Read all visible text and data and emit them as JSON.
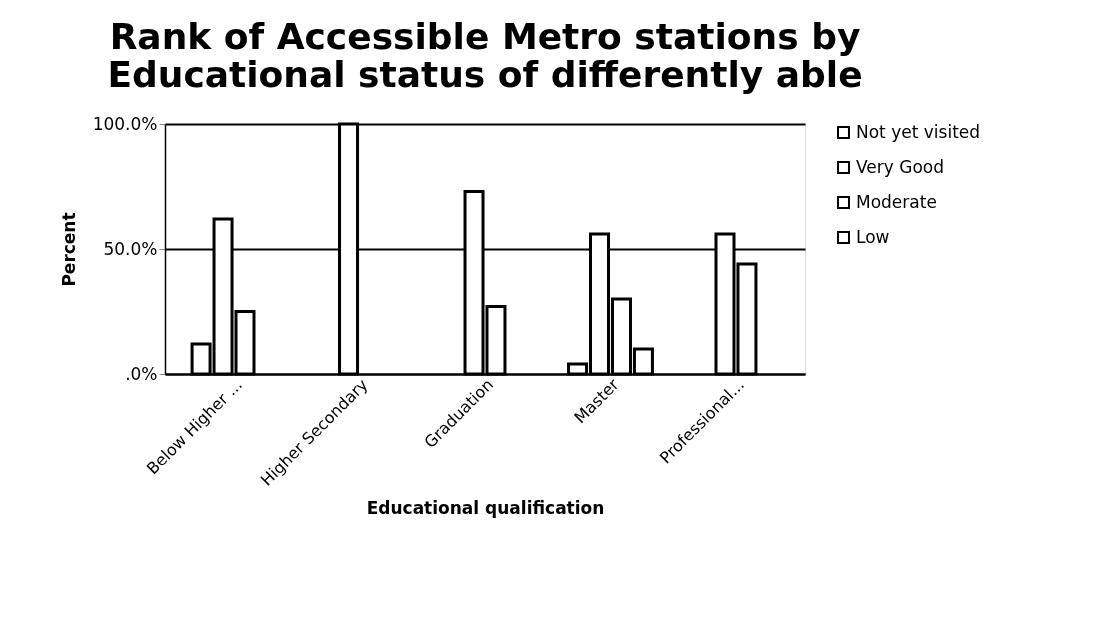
{
  "chart_data": {
    "type": "bar",
    "title": "Rank of Accessible Metro stations by Educational status of differently able",
    "xlabel": "Educational qualification",
    "ylabel": "Percent",
    "categories": [
      "Below Higher ...",
      "Higher Secondary",
      "Graduation",
      "Master",
      "Professional..."
    ],
    "series": [
      {
        "name": "Not yet visited",
        "color": "#ffffff",
        "values": [
          12,
          0,
          0,
          4,
          0
        ]
      },
      {
        "name": "Very Good",
        "color": "#ffffff",
        "values": [
          62,
          100,
          73,
          56,
          56
        ]
      },
      {
        "name": "Moderate",
        "color": "#ffffff",
        "values": [
          25,
          0,
          27,
          30,
          44
        ]
      },
      {
        "name": "Low",
        "color": "#ffffff",
        "values": [
          0,
          0,
          0,
          10,
          0
        ]
      }
    ],
    "ylim": [
      0,
      100
    ],
    "yticks": [
      {
        "value": 0,
        "label": ".0%"
      },
      {
        "value": 50,
        "label": "50.0%"
      },
      {
        "value": 100,
        "label": "100.0%"
      }
    ],
    "grid": "y",
    "legend": "right"
  }
}
